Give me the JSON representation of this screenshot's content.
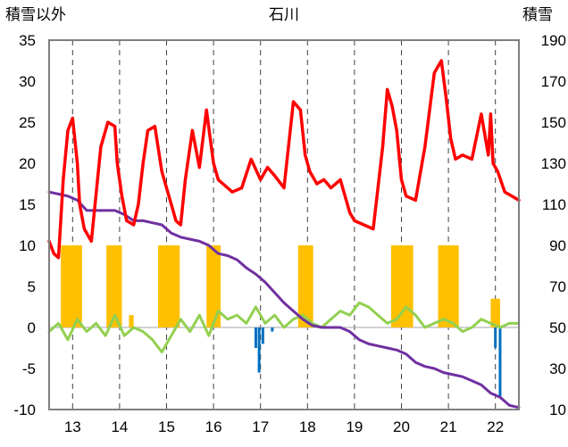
{
  "chart_data": {
    "type": "line",
    "title": "石川",
    "ylabel_left": "積雪以外",
    "ylabel_right": "積雪",
    "ylim_left": [
      -10,
      35
    ],
    "yticks_left": [
      -10,
      -5,
      0,
      5,
      10,
      15,
      20,
      25,
      30,
      35
    ],
    "ylim_right": [
      10,
      190
    ],
    "yticks_right": [
      10,
      30,
      50,
      70,
      90,
      110,
      130,
      150,
      170,
      190
    ],
    "xlim": [
      12.5,
      22.5
    ],
    "xticks": [
      13,
      14,
      15,
      16,
      17,
      18,
      19,
      20,
      21,
      22
    ],
    "grid": "vertical-dashed",
    "colors": {
      "red": "#ff0000",
      "purple": "#7030a0",
      "green": "#92d050",
      "orange": "#ffc000",
      "blue": "#0070c0",
      "axis": "#7f7f7f"
    },
    "series": [
      {
        "color": "red",
        "axis": "left",
        "x": [
          12.5,
          12.6,
          12.7,
          12.8,
          12.9,
          13.0,
          13.1,
          13.15,
          13.25,
          13.4,
          13.6,
          13.75,
          13.9,
          13.95,
          14.05,
          14.15,
          14.3,
          14.4,
          14.5,
          14.6,
          14.75,
          14.9,
          15.0,
          15.1,
          15.2,
          15.3,
          15.4,
          15.55,
          15.7,
          15.85,
          15.93,
          16.0,
          16.1,
          16.2,
          16.4,
          16.6,
          16.8,
          17.0,
          17.15,
          17.3,
          17.5,
          17.7,
          17.85,
          17.95,
          18.05,
          18.2,
          18.35,
          18.5,
          18.7,
          18.9,
          19.0,
          19.2,
          19.4,
          19.6,
          19.7,
          19.8,
          19.9,
          20.0,
          20.1,
          20.3,
          20.5,
          20.7,
          20.85,
          20.95,
          21.05,
          21.15,
          21.3,
          21.5,
          21.7,
          21.85,
          21.9,
          21.95,
          22.05,
          22.2,
          22.35,
          22.5
        ],
        "y": [
          10.5,
          9,
          8.5,
          18,
          24,
          25.5,
          20,
          15,
          12,
          10.5,
          22,
          25,
          24.5,
          20,
          16,
          13,
          12.5,
          15,
          20,
          24,
          24.5,
          19,
          17,
          15,
          13,
          12.5,
          18,
          24,
          19.5,
          26.5,
          23,
          20,
          18,
          17.5,
          16.5,
          17,
          20.5,
          18,
          19.5,
          18.5,
          17,
          27.5,
          26.5,
          21,
          19,
          17.5,
          18,
          17,
          18,
          14,
          13,
          12.5,
          12,
          22,
          29,
          27,
          24,
          18,
          16,
          15.5,
          22,
          31,
          32.5,
          28,
          23,
          20.5,
          21,
          20.5,
          26,
          21,
          26,
          20,
          19,
          16.5,
          16,
          15.5
        ]
      },
      {
        "color": "purple",
        "axis": "right",
        "x": [
          12.5,
          12.7,
          12.9,
          13.1,
          13.3,
          13.5,
          13.7,
          13.9,
          14.1,
          14.3,
          14.5,
          14.7,
          14.9,
          15.1,
          15.3,
          15.5,
          15.7,
          15.9,
          16.1,
          16.3,
          16.5,
          16.7,
          16.9,
          17.1,
          17.3,
          17.5,
          17.7,
          17.9,
          18.1,
          18.3,
          18.5,
          18.7,
          18.9,
          19.1,
          19.3,
          19.5,
          19.7,
          19.9,
          20.1,
          20.3,
          20.5,
          20.7,
          20.9,
          21.1,
          21.3,
          21.5,
          21.7,
          21.9,
          22.1,
          22.3,
          22.5
        ],
        "y": [
          116,
          115,
          114,
          112,
          107,
          107,
          107,
          107,
          105,
          102,
          102,
          101,
          100,
          96,
          94,
          93,
          92,
          90,
          86,
          85,
          83,
          79,
          76,
          72,
          67,
          62,
          58,
          54,
          51,
          50,
          50,
          50,
          48,
          44,
          42,
          41,
          40,
          39,
          37,
          33,
          31,
          30,
          28,
          27,
          26,
          24,
          22,
          18,
          16,
          12,
          11
        ]
      },
      {
        "color": "green",
        "axis": "left",
        "x": [
          12.5,
          12.7,
          12.9,
          13.1,
          13.3,
          13.5,
          13.7,
          13.9,
          14.1,
          14.3,
          14.5,
          14.7,
          14.9,
          15.1,
          15.3,
          15.5,
          15.7,
          15.9,
          16.1,
          16.3,
          16.5,
          16.7,
          16.9,
          17.1,
          17.3,
          17.5,
          17.7,
          17.9,
          18.1,
          18.3,
          18.5,
          18.7,
          18.9,
          19.1,
          19.3,
          19.5,
          19.7,
          19.9,
          20.1,
          20.3,
          20.5,
          20.7,
          20.9,
          21.1,
          21.3,
          21.5,
          21.7,
          21.9,
          22.1,
          22.3,
          22.5
        ],
        "y": [
          -0.5,
          0.5,
          -1.5,
          1,
          -0.5,
          0.5,
          -1,
          1.5,
          -1,
          0,
          -0.5,
          -1.5,
          -3,
          -1,
          1,
          -0.5,
          1.5,
          -1,
          2,
          1,
          1.5,
          0.5,
          2.5,
          0.5,
          1.5,
          0,
          1,
          1.5,
          0.5,
          0,
          1,
          2,
          1.5,
          3,
          2.5,
          1.5,
          0.5,
          1,
          2.5,
          1.5,
          0,
          0.5,
          1,
          0.5,
          -0.5,
          0,
          1,
          0.5,
          0,
          0.5,
          0.5
        ]
      }
    ],
    "bars_orange": [
      {
        "x0": 12.75,
        "x1": 13.2,
        "y": 10
      },
      {
        "x0": 13.72,
        "x1": 14.05,
        "y": 10
      },
      {
        "x0": 14.2,
        "x1": 14.3,
        "y": 1.5
      },
      {
        "x0": 14.82,
        "x1": 15.28,
        "y": 10
      },
      {
        "x0": 15.85,
        "x1": 16.15,
        "y": 10
      },
      {
        "x0": 17.8,
        "x1": 18.12,
        "y": 10
      },
      {
        "x0": 19.78,
        "x1": 20.25,
        "y": 10
      },
      {
        "x0": 20.78,
        "x1": 21.22,
        "y": 10
      },
      {
        "x0": 21.9,
        "x1": 22.1,
        "y": 3.5
      }
    ],
    "bars_blue": [
      {
        "x": 16.9,
        "y": -2.5
      },
      {
        "x": 16.97,
        "y": -5.5
      },
      {
        "x": 17.05,
        "y": -2
      },
      {
        "x": 17.25,
        "y": -0.5
      },
      {
        "x": 22.0,
        "y": -2.5
      },
      {
        "x": 22.1,
        "y": -8.5
      }
    ]
  }
}
